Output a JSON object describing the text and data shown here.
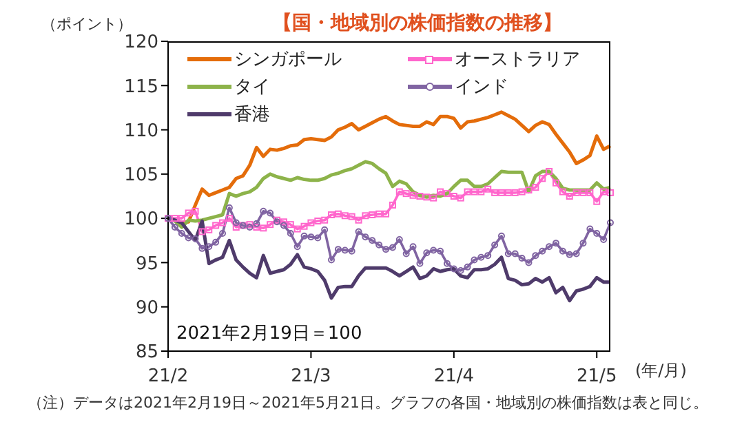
{
  "chart_data": {
    "type": "line",
    "title": "【国・地域別の株価指数の推移】",
    "ylabel": "（ポイント）",
    "xlabel": "(年/月)",
    "categories": [
      "21/2",
      null,
      null,
      null,
      null,
      null,
      null,
      null,
      null,
      null,
      null,
      null,
      null,
      null,
      null,
      null,
      null,
      null,
      null,
      null,
      null,
      "21/3",
      null,
      null,
      null,
      null,
      null,
      null,
      null,
      null,
      null,
      null,
      null,
      null,
      null,
      null,
      null,
      null,
      null,
      null,
      null,
      null,
      "21/4",
      null,
      null,
      null,
      null,
      null,
      null,
      null,
      null,
      null,
      null,
      null,
      null,
      null,
      null,
      null,
      null,
      null,
      null,
      null,
      null,
      "21/5",
      null,
      null
    ],
    "series": [
      {
        "name": "シンガポール",
        "color": "#e46c0a",
        "marker": "none",
        "values": [
          100,
          99.8,
          99.5,
          99.6,
          101.5,
          103.3,
          102.6,
          102.9,
          103.2,
          103.5,
          104.5,
          104.8,
          106,
          108,
          107,
          107.8,
          107.7,
          107.9,
          108.2,
          108.3,
          108.9,
          109,
          108.9,
          108.8,
          109.2,
          110,
          110.3,
          110.7,
          110,
          110.4,
          110.8,
          111.2,
          111.5,
          111,
          110.6,
          110.5,
          110.4,
          110.4,
          110.9,
          110.6,
          111.5,
          111.5,
          111.3,
          110.2,
          110.9,
          111,
          111.2,
          111.4,
          111.7,
          112,
          111.6,
          111.2,
          110.5,
          109.8,
          110.5,
          110.9,
          110.6,
          109.5,
          108.5,
          107.5,
          106.2,
          106.6,
          107.1,
          109.3,
          107.8,
          108.2
        ]
      },
      {
        "name": "オーストラリア",
        "color": "#ff66cc",
        "marker": "square",
        "values": [
          100,
          100,
          100,
          100.6,
          100.8,
          98.5,
          98.7,
          99.2,
          99.5,
          100,
          99,
          99.2,
          99.3,
          99,
          98.9,
          99.3,
          99.8,
          99.6,
          99.3,
          98.8,
          99.1,
          99.5,
          99.7,
          99.8,
          100.4,
          100.5,
          100.3,
          100.2,
          99.8,
          100.3,
          100.4,
          100.5,
          100.5,
          101.5,
          103,
          102.8,
          102.6,
          102.5,
          102.4,
          102.3,
          103,
          102.8,
          102.5,
          102.3,
          103,
          103,
          103,
          103.3,
          102.9,
          102.9,
          102.9,
          102.9,
          103,
          103.2,
          103.5,
          104.5,
          105.3,
          104,
          103,
          102.5,
          102.9,
          102.9,
          102.9,
          101.9,
          103,
          102.9
        ]
      },
      {
        "name": "タイ",
        "color": "#8db34a",
        "marker": "none",
        "values": [
          100,
          99.7,
          99,
          99.8,
          99.7,
          99.8,
          100,
          100.2,
          100.4,
          102.8,
          102.5,
          102.8,
          103,
          103.5,
          104.5,
          105,
          104.7,
          104.5,
          104.3,
          104.6,
          104.4,
          104.3,
          104.3,
          104.5,
          104.9,
          105.1,
          105.4,
          105.6,
          106,
          106.4,
          106.2,
          105.6,
          105.1,
          103.6,
          104.2,
          103.9,
          103,
          102.6,
          102.4,
          102.6,
          102.5,
          102.8,
          103.6,
          104.3,
          104.3,
          103.6,
          103.6,
          103.9,
          104.6,
          105.3,
          105.2,
          105.2,
          105.2,
          103,
          104.8,
          105.3,
          105.3,
          104.5,
          103.4,
          103.2,
          103.2,
          103.2,
          103.2,
          104,
          103.3,
          103.5
        ]
      },
      {
        "name": "インド",
        "color": "#8064a2",
        "marker": "circle",
        "values": [
          100,
          99,
          98.3,
          97.8,
          97.7,
          96.6,
          96.8,
          97.3,
          98.3,
          101.2,
          99.5,
          99.2,
          99,
          99.4,
          100.8,
          100.6,
          99.6,
          99.2,
          98.3,
          96.8,
          98,
          97.9,
          97.8,
          98.7,
          95.3,
          96.5,
          96.4,
          96.3,
          98.5,
          97.9,
          97.5,
          97,
          96.5,
          96.7,
          97.6,
          96,
          96.8,
          94.9,
          96.1,
          96.4,
          96.3,
          94.9,
          94.3,
          94.1,
          94.5,
          95.3,
          95.6,
          95.8,
          97,
          98,
          96,
          96,
          95.5,
          95,
          95.8,
          96.3,
          96.8,
          97.2,
          96.3,
          95.9,
          96,
          97.2,
          98.8,
          98.3,
          97.6,
          99.5
        ]
      },
      {
        "name": "香港",
        "color": "#4f3b6b",
        "marker": "none",
        "values": [
          100,
          99.8,
          99.5,
          98.5,
          97.5,
          99.7,
          94.9,
          95.3,
          95.6,
          97.5,
          95.3,
          94.5,
          93.8,
          93.3,
          95.8,
          93.8,
          94,
          94.2,
          94.8,
          95.9,
          94.5,
          94.3,
          94,
          93,
          91,
          92.2,
          92.3,
          92.3,
          93.5,
          94.4,
          94.4,
          94.4,
          94.4,
          94,
          93.5,
          94,
          94.5,
          93.2,
          93.5,
          94.3,
          94,
          94.2,
          94.3,
          93.5,
          93.3,
          94.2,
          94.2,
          94.3,
          94.8,
          95.6,
          93.2,
          93,
          92.5,
          92.6,
          93.2,
          92.8,
          93.3,
          91.6,
          92.2,
          90.7,
          91.8,
          92,
          92.3,
          93.3,
          92.8,
          92.8
        ]
      }
    ],
    "ylim": [
      85,
      120
    ],
    "yticks": [
      85,
      90,
      95,
      100,
      105,
      110,
      115,
      120
    ],
    "grid": false,
    "legend": "top left",
    "annotations": [
      "2021年2月19日＝100",
      "（注）データは2021年2月19日～2021年5月21日。グラフの各国・地域別の株価指数は表と同じ。"
    ]
  }
}
